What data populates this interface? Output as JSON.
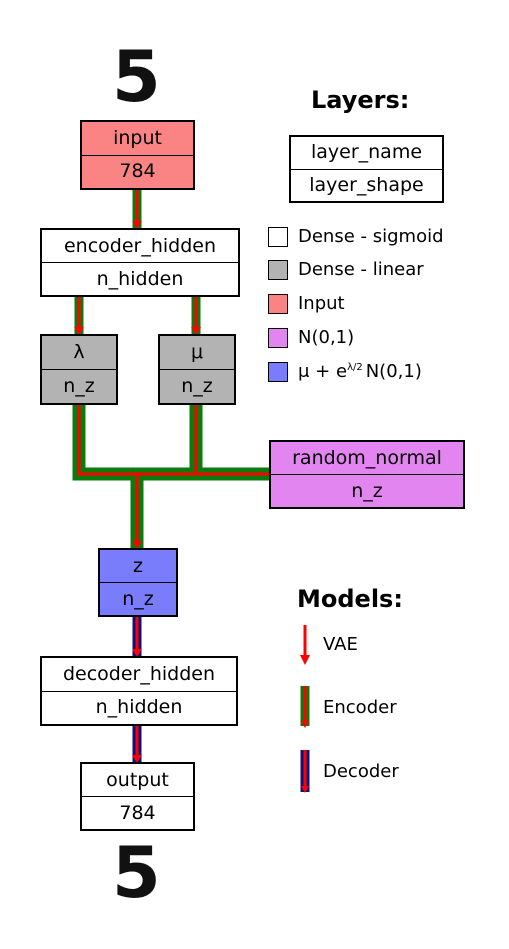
{
  "colors": {
    "white": "#ffffff",
    "dense_linear": "#b3b3b3",
    "input": "#f98483",
    "normal": "#e385f0",
    "latent": "#7a7dfb",
    "vae_arrow": "#ff0000",
    "encoder_edge": "#0d7a0d",
    "decoder_edge": "#10107a"
  },
  "digits": {
    "top": "5",
    "bottom": "5"
  },
  "nodes": {
    "input": {
      "name": "input",
      "shape": "784"
    },
    "encoder_hidden": {
      "name": "encoder_hidden",
      "shape": "n_hidden"
    },
    "lambda": {
      "name": "λ",
      "shape": "n_z"
    },
    "mu": {
      "name": "μ",
      "shape": "n_z"
    },
    "random_normal": {
      "name": "random_normal",
      "shape": "n_z"
    },
    "z": {
      "name": "z",
      "shape": "n_z"
    },
    "decoder_hidden": {
      "name": "decoder_hidden",
      "shape": "n_hidden"
    },
    "output": {
      "name": "output",
      "shape": "784"
    }
  },
  "layers_legend": {
    "title": "Layers:",
    "key": {
      "name": "layer_name",
      "shape": "layer_shape"
    },
    "items": [
      {
        "label": "Dense - sigmoid",
        "color": "#ffffff"
      },
      {
        "label": "Dense - linear",
        "color": "#b3b3b3"
      },
      {
        "label": "Input",
        "color": "#f98483"
      },
      {
        "label": "N(0,1)",
        "color": "#e385f0"
      },
      {
        "label": "μ + e",
        "sup": "λ/2",
        "suffix": "N(0,1)",
        "color": "#7a7dfb"
      }
    ]
  },
  "models_legend": {
    "title": "Models:",
    "items": [
      {
        "label": "VAE"
      },
      {
        "label": "Encoder"
      },
      {
        "label": "Decoder"
      }
    ]
  }
}
